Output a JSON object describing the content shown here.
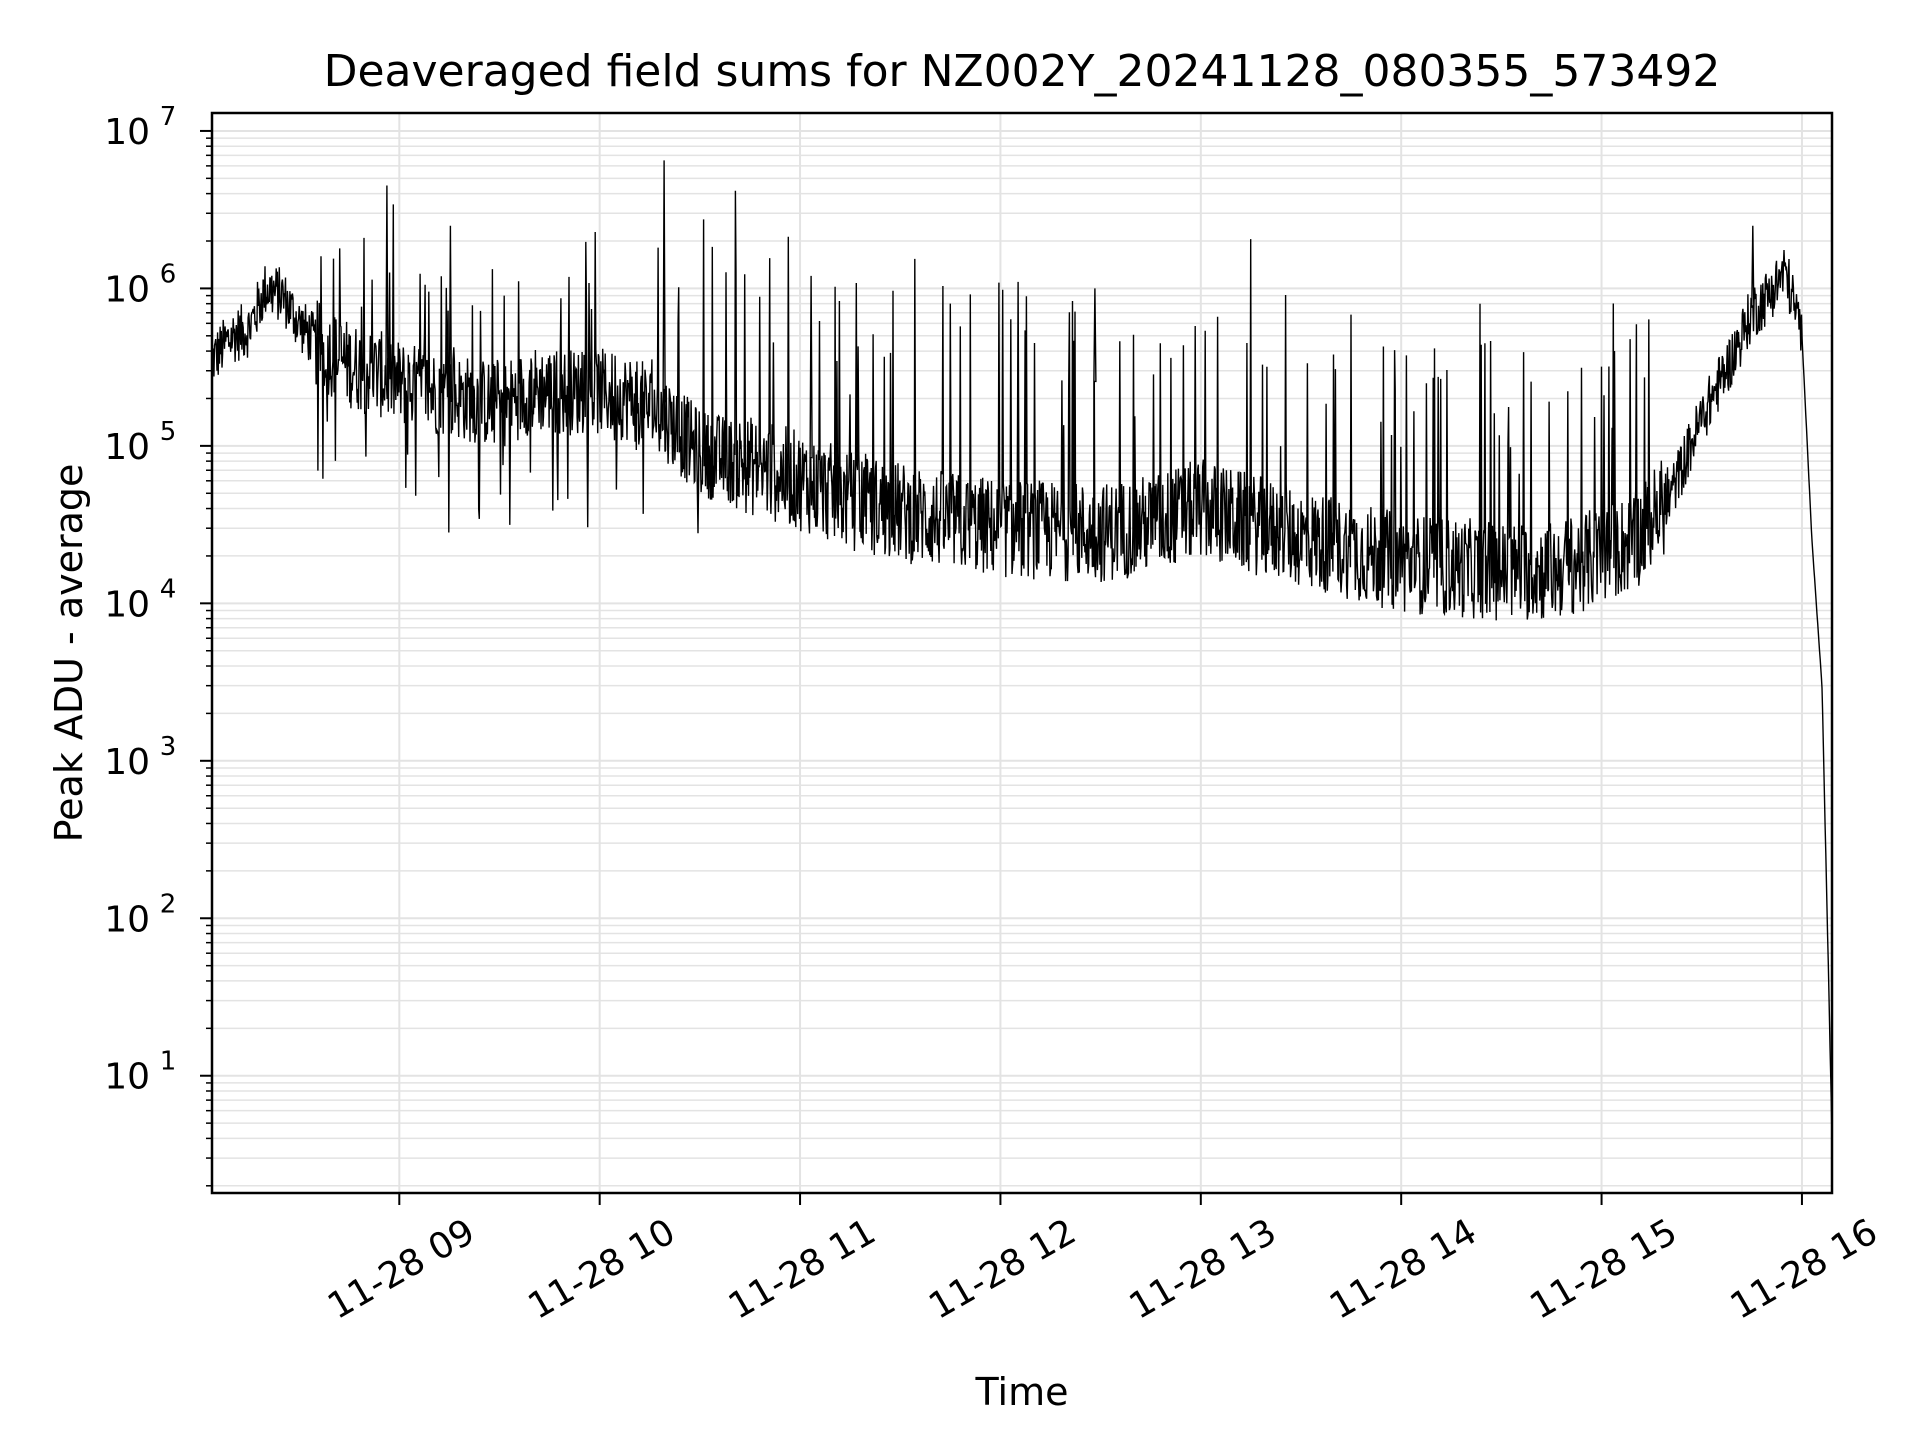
{
  "chart_data": {
    "type": "line",
    "title": "Deaveraged field sums for NZ002Y_20241128_080355_573492",
    "xlabel": "Time",
    "ylabel": "Peak ADU - average",
    "yscale": "log",
    "ylim": [
      1.8,
      13000000
    ],
    "xlim": [
      "2024-11-28 08:03:55",
      "2024-11-28 16:09:00"
    ],
    "grid": true,
    "line_color": "#000000",
    "grid_color": "#e3e3e3",
    "x_ticks": [
      {
        "t": "2024-11-28 09:00",
        "label": "11-28 09"
      },
      {
        "t": "2024-11-28 10:00",
        "label": "11-28 10"
      },
      {
        "t": "2024-11-28 11:00",
        "label": "11-28 11"
      },
      {
        "t": "2024-11-28 12:00",
        "label": "11-28 12"
      },
      {
        "t": "2024-11-28 13:00",
        "label": "11-28 13"
      },
      {
        "t": "2024-11-28 14:00",
        "label": "11-28 14"
      },
      {
        "t": "2024-11-28 15:00",
        "label": "11-28 15"
      },
      {
        "t": "2024-11-28 16:00",
        "label": "11-28 16"
      }
    ],
    "y_ticks": [
      {
        "value": 10,
        "base": "10",
        "exp": "1"
      },
      {
        "value": 100,
        "base": "10",
        "exp": "2"
      },
      {
        "value": 1000,
        "base": "10",
        "exp": "3"
      },
      {
        "value": 10000,
        "base": "10",
        "exp": "4"
      },
      {
        "value": 100000,
        "base": "10",
        "exp": "5"
      },
      {
        "value": 1000000,
        "base": "10",
        "exp": "6"
      },
      {
        "value": 10000000,
        "base": "10",
        "exp": "7"
      }
    ],
    "series": [
      {
        "x": [
          "2024-11-28 08:03:55",
          "2024-11-28 08:10",
          "2024-11-28 08:15",
          "2024-11-28 08:20",
          "2024-11-28 08:25",
          "2024-11-28 08:30",
          "2024-11-28 08:35",
          "2024-11-28 08:40",
          "2024-11-28 08:45",
          "2024-11-28 08:50",
          "2024-11-28 08:55",
          "2024-11-28 09:00",
          "2024-11-28 09:10",
          "2024-11-28 09:20",
          "2024-11-28 09:30",
          "2024-11-28 09:40",
          "2024-11-28 09:50",
          "2024-11-28 10:00",
          "2024-11-28 10:10",
          "2024-11-28 10:20",
          "2024-11-28 10:30",
          "2024-11-28 10:40",
          "2024-11-28 10:50",
          "2024-11-28 11:00",
          "2024-11-28 11:15",
          "2024-11-28 11:30",
          "2024-11-28 11:45",
          "2024-11-28 12:00",
          "2024-11-28 12:15",
          "2024-11-28 12:30",
          "2024-11-28 12:45",
          "2024-11-28 13:00",
          "2024-11-28 13:15",
          "2024-11-28 13:30",
          "2024-11-28 13:45",
          "2024-11-28 14:00",
          "2024-11-28 14:15",
          "2024-11-28 14:30",
          "2024-11-28 14:45",
          "2024-11-28 15:00",
          "2024-11-28 15:10",
          "2024-11-28 15:20",
          "2024-11-28 15:30",
          "2024-11-28 15:40",
          "2024-11-28 15:45",
          "2024-11-28 15:50",
          "2024-11-28 15:55",
          "2024-11-28 16:00",
          "2024-11-28 16:03",
          "2024-11-28 16:06",
          "2024-11-28 16:08",
          "2024-11-28 16:09"
        ],
        "y": [
          350000,
          500000,
          550000,
          1000000,
          900000,
          600000,
          450000,
          380000,
          330000,
          300000,
          280000,
          250000,
          220000,
          200000,
          180000,
          230000,
          220000,
          220000,
          200000,
          150000,
          90000,
          80000,
          70000,
          60000,
          45000,
          38000,
          33000,
          30000,
          29000,
          28000,
          32000,
          40000,
          32000,
          26000,
          22000,
          18000,
          17000,
          16000,
          16000,
          20000,
          25000,
          45000,
          150000,
          400000,
          700000,
          900000,
          1300000,
          500000,
          25000,
          3000,
          40,
          4
        ],
        "spikes": [
          {
            "t": "2024-11-28 08:56",
            "y": 4500000
          },
          {
            "t": "2024-11-28 09:15",
            "y": 2500000
          },
          {
            "t": "2024-11-28 10:19",
            "y": 6500000
          },
          {
            "t": "2024-11-28 11:03",
            "y": 1200000
          },
          {
            "t": "2024-11-28 12:05",
            "y": 1100000
          },
          {
            "t": "2024-11-28 12:28",
            "y": 1000000
          },
          {
            "t": "2024-11-28 15:45",
            "y": 2500000
          }
        ]
      }
    ]
  }
}
